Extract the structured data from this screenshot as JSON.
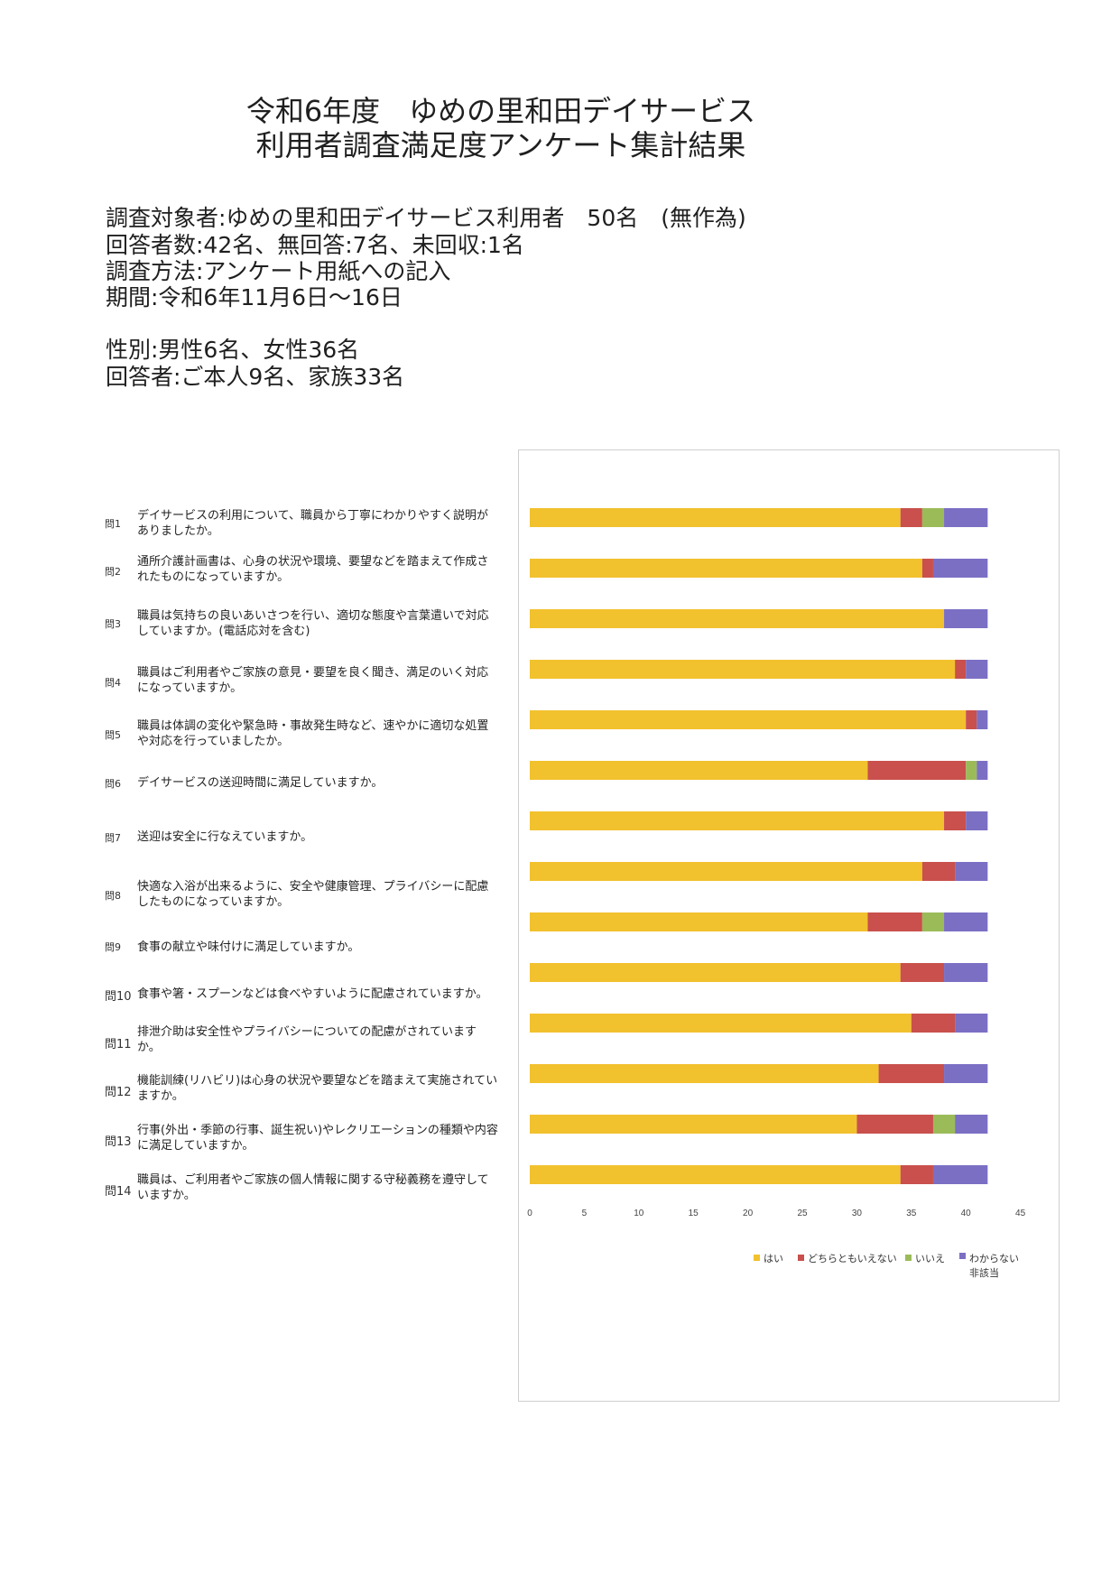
{
  "title_line1": "令和6年度　ゆめの里和田デイサービス",
  "title_line2": "利用者調査満足度アンケート集計結果",
  "info": {
    "target": "調査対象者:ゆめの里和田デイサービス利用者　50名　(無作為)",
    "respondents": "回答者数:42名、無回答:7名、未回収:1名",
    "method": "調査方法:アンケート用紙への記入",
    "period": "期間:令和6年11月6日～16日",
    "gender": "性別:男性6名、女性36名",
    "respondent_type": "回答者:ご本人9名、家族33名"
  },
  "questions": [
    {
      "no": "問1",
      "text": "デイサービスの利用について、職員から丁寧にわかりやすく説明がありましたか。"
    },
    {
      "no": "問2",
      "text": "通所介護計画書は、心身の状況や環境、要望などを踏まえて作成されたものになっていますか。"
    },
    {
      "no": "問3",
      "text": "職員は気持ちの良いあいさつを行い、適切な態度や言葉遣いで対応していますか。(電話応対を含む)"
    },
    {
      "no": "問4",
      "text": "職員はご利用者やご家族の意見・要望を良く聞き、満足のいく対応になっていますか。"
    },
    {
      "no": "問5",
      "text": "職員は体調の変化や緊急時・事故発生時など、速やかに適切な処置や対応を行っていましたか。"
    },
    {
      "no": "問6",
      "text": "デイサービスの送迎時間に満足していますか。"
    },
    {
      "no": "問7",
      "text": "送迎は安全に行なえていますか。"
    },
    {
      "no": "問8",
      "text": "快適な入浴が出来るように、安全や健康管理、プライバシーに配慮したものになっていますか。"
    },
    {
      "no": "問9",
      "text": "食事の献立や味付けに満足していますか。"
    },
    {
      "no": "問10",
      "text": "食事や箸・スプーンなどは食べやすいように配慮されていますか。"
    },
    {
      "no": "問11",
      "text": "排泄介助は安全性やプライバシーについての配慮がされていますか。"
    },
    {
      "no": "問12",
      "text": "機能訓練(リハビリ)は心身の状況や要望などを踏まえて実施されていますか。"
    },
    {
      "no": "問13",
      "text": "行事(外出・季節の行事、誕生祝い)やレクリエーションの種類や内容に満足していますか。"
    },
    {
      "no": "問14",
      "text": "職員は、ご利用者やご家族の個人情報に関する守秘義務を遵守していますか。"
    }
  ],
  "colors": {
    "hai": "#F2C12E",
    "dochira": "#C9504C",
    "iie": "#9BBB59",
    "wakaranai": "#7B6FC4"
  },
  "chart_data": {
    "type": "bar",
    "orientation": "horizontal",
    "stacked": true,
    "categories": [
      "問1",
      "問2",
      "問3",
      "問4",
      "問5",
      "問6",
      "問7",
      "問8",
      "問9",
      "問10",
      "問11",
      "問12",
      "問13",
      "問14"
    ],
    "series": [
      {
        "name": "はい",
        "values": [
          34,
          36,
          38,
          39,
          40,
          31,
          38,
          36,
          31,
          34,
          35,
          32,
          30,
          34
        ]
      },
      {
        "name": "どちらともいえない",
        "values": [
          2,
          1,
          0,
          1,
          1,
          9,
          2,
          3,
          5,
          4,
          4,
          6,
          7,
          3
        ]
      },
      {
        "name": "いいえ",
        "values": [
          2,
          0,
          0,
          0,
          0,
          1,
          0,
          0,
          2,
          0,
          0,
          0,
          2,
          0
        ]
      },
      {
        "name": "わからない\n非該当",
        "values": [
          4,
          5,
          4,
          2,
          1,
          1,
          2,
          3,
          4,
          4,
          3,
          4,
          3,
          5
        ]
      }
    ],
    "xlim": [
      0,
      45
    ],
    "xticks": [
      "0",
      "5",
      "10",
      "15",
      "20",
      "25",
      "30",
      "35",
      "40",
      "45"
    ],
    "grid": false,
    "legend_position": "bottom"
  }
}
